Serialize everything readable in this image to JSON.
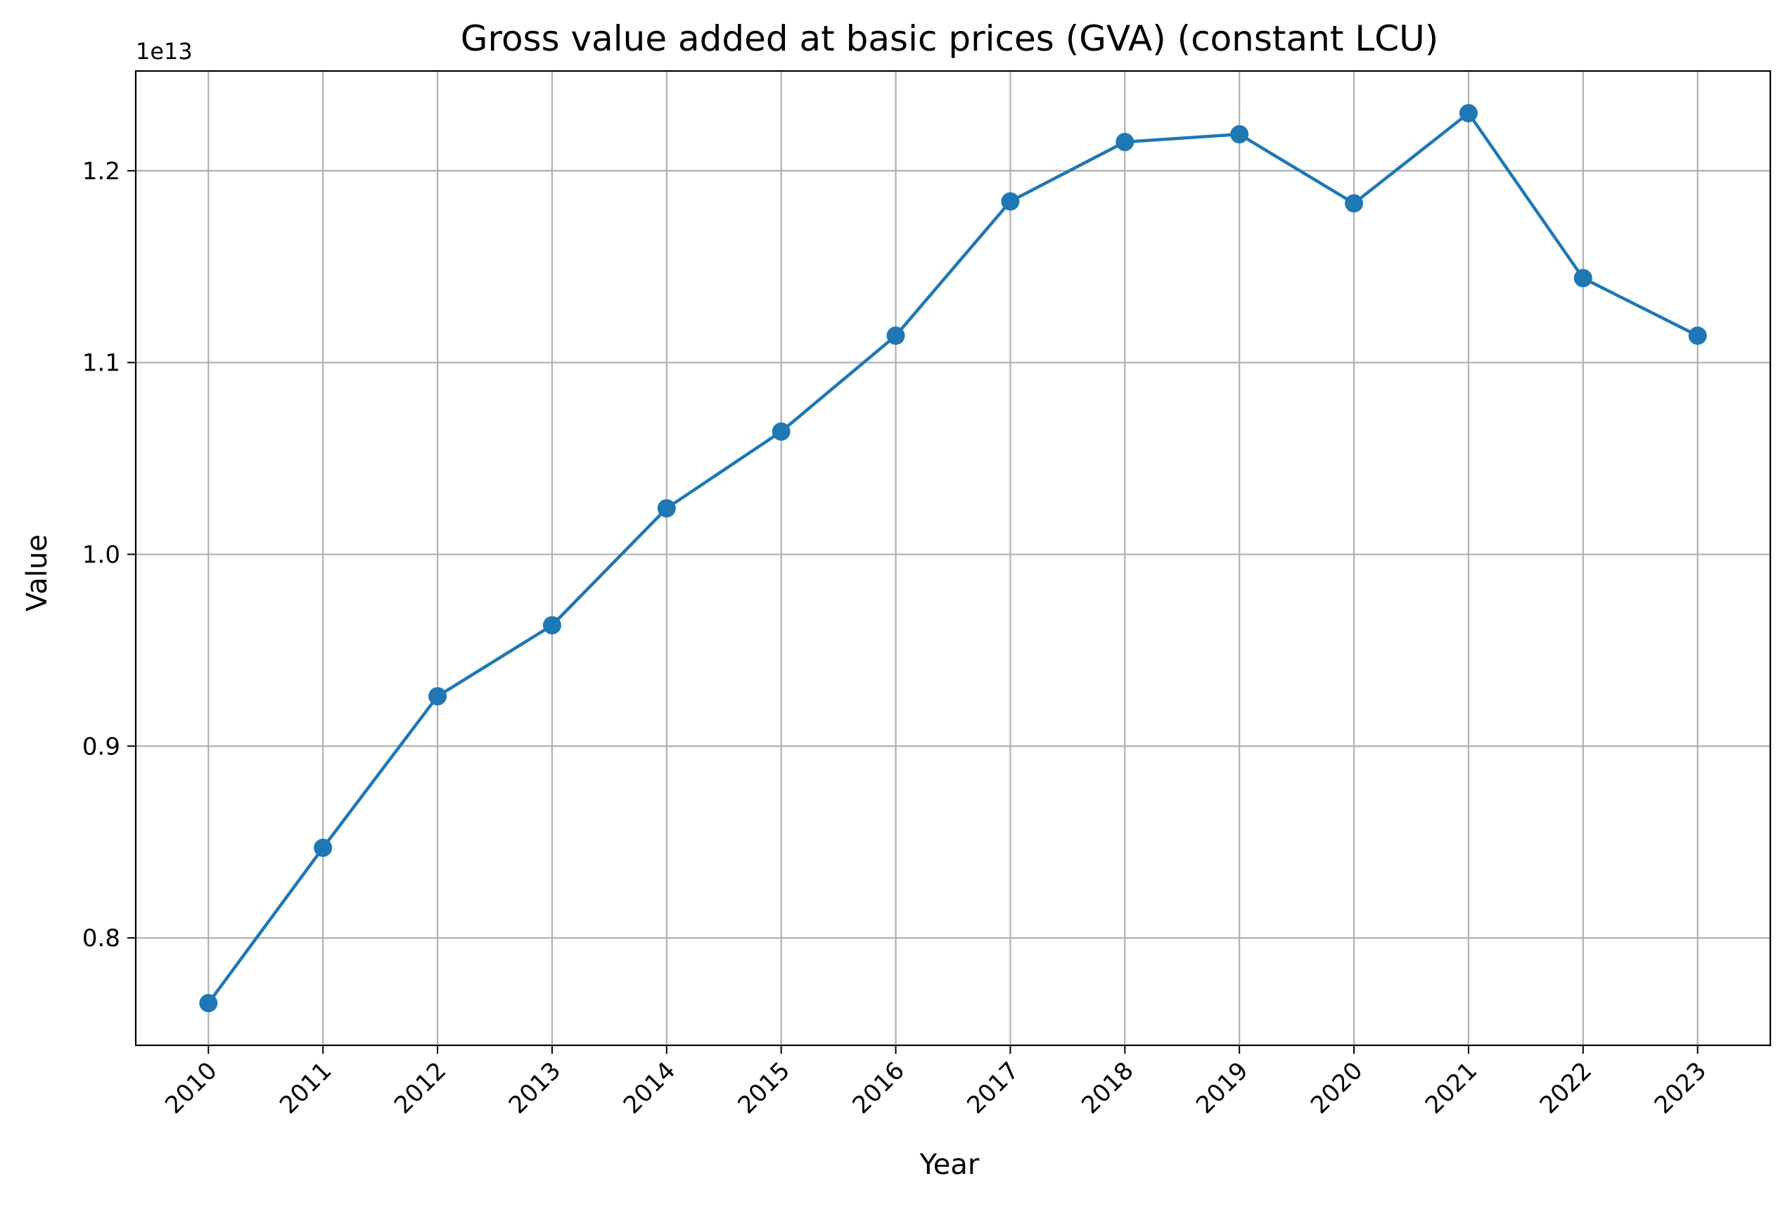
{
  "chart_data": {
    "type": "line",
    "title": "Gross value added at basic prices (GVA) (constant LCU)",
    "xlabel": "Year",
    "ylabel": "Value",
    "y_offset_label": "1e13",
    "x": [
      "2010",
      "2011",
      "2012",
      "2013",
      "2014",
      "2015",
      "2016",
      "2017",
      "2018",
      "2019",
      "2020",
      "2021",
      "2022",
      "2023"
    ],
    "series": [
      {
        "color": "#1f77b4",
        "marker": "circle",
        "values": [
          7660000000000.0,
          8470000000000.0,
          9260000000000.0,
          9630000000000.0,
          10240000000000.0,
          10640000000000.0,
          11140000000000.0,
          11840000000000.0,
          12150000000000.0,
          12190000000000.0,
          11830000000000.0,
          12300000000000.0,
          11440000000000.0,
          11140000000000.0
        ]
      }
    ],
    "y_ticks": [
      {
        "value": 8000000000000.0,
        "label": "0.8"
      },
      {
        "value": 9000000000000.0,
        "label": "0.9"
      },
      {
        "value": 10000000000000.0,
        "label": "1.0"
      },
      {
        "value": 11000000000000.0,
        "label": "1.1"
      },
      {
        "value": 12000000000000.0,
        "label": "1.2"
      }
    ],
    "ylim": [
      7440000000000.0,
      12520000000000.0
    ],
    "grid": true,
    "x_tick_rotation": 45
  }
}
